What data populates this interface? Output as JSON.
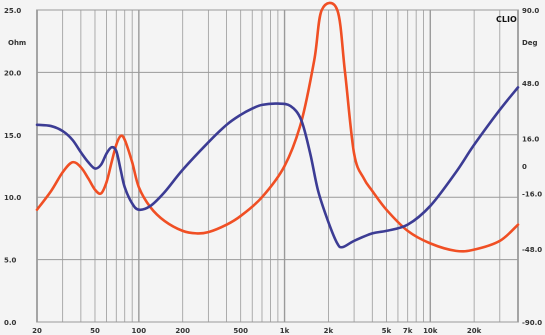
{
  "chart_data": {
    "type": "line",
    "title": "",
    "brand_label": "CLIO",
    "left_unit": "Ohm",
    "right_unit": "Deg",
    "left_axis": {
      "min": 0,
      "max": 25,
      "ticks": [
        "0.0",
        "5.0",
        "10.0",
        "15.0",
        "20.0",
        "25.0"
      ]
    },
    "right_axis": {
      "min": -90,
      "max": 90,
      "ticks": [
        "-90.0",
        "-48.0",
        "-16.0",
        "0",
        "16.0",
        "48.0",
        "90.0"
      ]
    },
    "x_axis": {
      "scale": "log",
      "min": 20,
      "max": 40000,
      "tick_labels": [
        {
          "v": 20,
          "t": "20"
        },
        {
          "v": 50,
          "t": "50"
        },
        {
          "v": 100,
          "t": "100"
        },
        {
          "v": 200,
          "t": "200"
        },
        {
          "v": 500,
          "t": "500"
        },
        {
          "v": 1000,
          "t": "1k"
        },
        {
          "v": 2000,
          "t": "2k"
        },
        {
          "v": 5000,
          "t": "5k"
        },
        {
          "v": 7000,
          "t": "7k"
        },
        {
          "v": 10000,
          "t": "10k"
        },
        {
          "v": 20000,
          "t": "20k"
        }
      ]
    },
    "grid": true,
    "colors": {
      "impedance": "#f04f24",
      "phase": "#3c3c94",
      "grid": "#9a9a9a",
      "background": "#f4f4f4"
    },
    "series": [
      {
        "key": "impedance",
        "axis": "left",
        "points": [
          [
            20,
            9.0
          ],
          [
            25,
            10.5
          ],
          [
            30,
            12.0
          ],
          [
            35,
            12.8
          ],
          [
            40,
            12.4
          ],
          [
            45,
            11.5
          ],
          [
            50,
            10.6
          ],
          [
            55,
            10.3
          ],
          [
            60,
            11.2
          ],
          [
            65,
            12.8
          ],
          [
            70,
            14.2
          ],
          [
            75,
            14.9
          ],
          [
            80,
            14.6
          ],
          [
            90,
            12.8
          ],
          [
            100,
            10.8
          ],
          [
            120,
            9.2
          ],
          [
            150,
            8.1
          ],
          [
            200,
            7.3
          ],
          [
            250,
            7.1
          ],
          [
            300,
            7.2
          ],
          [
            400,
            7.8
          ],
          [
            500,
            8.5
          ],
          [
            700,
            10.0
          ],
          [
            1000,
            12.5
          ],
          [
            1300,
            16.0
          ],
          [
            1600,
            21.0
          ],
          [
            1800,
            25.0
          ],
          [
            2300,
            25.0
          ],
          [
            2600,
            20.0
          ],
          [
            3000,
            13.5
          ],
          [
            3500,
            11.5
          ],
          [
            4000,
            10.5
          ],
          [
            5000,
            9.0
          ],
          [
            7000,
            7.3
          ],
          [
            10000,
            6.3
          ],
          [
            15000,
            5.7
          ],
          [
            20000,
            5.8
          ],
          [
            30000,
            6.5
          ],
          [
            40000,
            7.8
          ]
        ]
      },
      {
        "key": "phase",
        "axis": "left",
        "points": [
          [
            20,
            15.8
          ],
          [
            25,
            15.7
          ],
          [
            30,
            15.3
          ],
          [
            35,
            14.6
          ],
          [
            40,
            13.6
          ],
          [
            45,
            12.8
          ],
          [
            50,
            12.3
          ],
          [
            55,
            12.6
          ],
          [
            60,
            13.5
          ],
          [
            65,
            14.0
          ],
          [
            70,
            13.7
          ],
          [
            75,
            12.2
          ],
          [
            80,
            10.8
          ],
          [
            90,
            9.5
          ],
          [
            100,
            9.0
          ],
          [
            120,
            9.3
          ],
          [
            150,
            10.4
          ],
          [
            200,
            12.2
          ],
          [
            300,
            14.4
          ],
          [
            400,
            15.8
          ],
          [
            500,
            16.6
          ],
          [
            600,
            17.1
          ],
          [
            700,
            17.4
          ],
          [
            900,
            17.5
          ],
          [
            1100,
            17.3
          ],
          [
            1300,
            16.2
          ],
          [
            1500,
            13.5
          ],
          [
            1700,
            10.5
          ],
          [
            2000,
            8.0
          ],
          [
            2300,
            6.3
          ],
          [
            2500,
            6.0
          ],
          [
            3000,
            6.5
          ],
          [
            4000,
            7.1
          ],
          [
            5000,
            7.3
          ],
          [
            7000,
            7.8
          ],
          [
            10000,
            9.3
          ],
          [
            15000,
            12.0
          ],
          [
            20000,
            14.2
          ],
          [
            30000,
            17.0
          ],
          [
            40000,
            18.8
          ]
        ]
      }
    ]
  }
}
